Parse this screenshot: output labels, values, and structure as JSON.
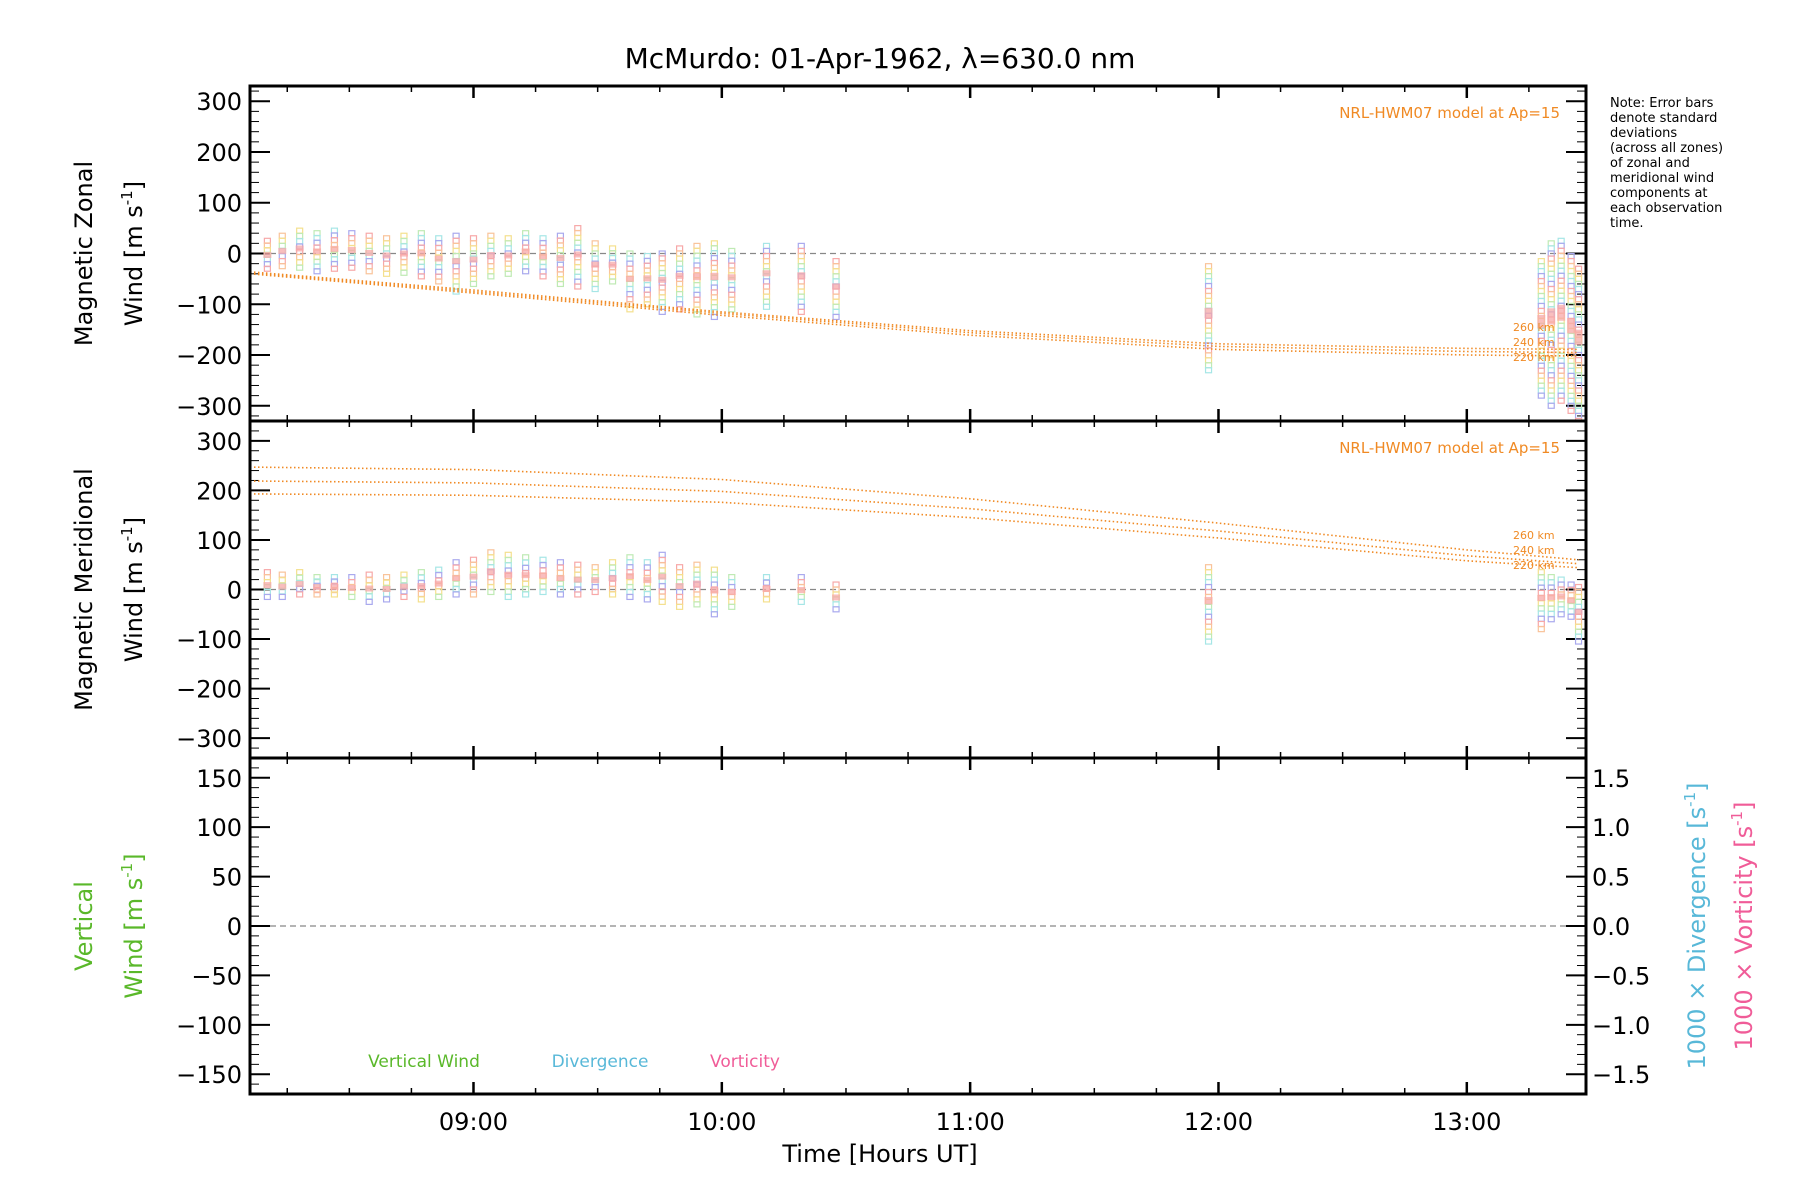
{
  "figure": {
    "title": "McMurdo: 01-Apr-1962, λ=630.0 nm",
    "note_lines": [
      "Note: Error bars",
      "denote standard",
      "deviations",
      "(across all zones)",
      "of zonal and",
      "meridional wind",
      "components at",
      "each observation",
      "time."
    ],
    "colors": {
      "model": "#f08a24",
      "vertical": "#5ab82a",
      "divergence": "#58b8d8",
      "vorticity": "#f05c98",
      "obs_pink": "#f7a8a8",
      "obs_peach": "#f9c39a",
      "obs_yellow": "#f4e08e",
      "obs_green": "#bfeab4",
      "obs_cyan": "#a6e6e6",
      "obs_blue": "#a9a9ee"
    }
  },
  "chart_data": [
    {
      "type": "line",
      "panel": "zonal",
      "ylabel_line1": "Magnetic Zonal",
      "ylabel_line2_prefix": "Wind ",
      "ylabel_units": "[m s",
      "ylabel_units_sup": "-1",
      "ylabel_units_close": "]",
      "ylim": [
        -330,
        330
      ],
      "yticks": [
        300,
        200,
        100,
        0,
        -100,
        -200,
        -300
      ],
      "ytick_labels": [
        "300",
        "200",
        "100",
        "0",
        "−100",
        "−200",
        "−300"
      ],
      "model_label": "NRL-HWM07 model at Ap=15",
      "model_series": [
        {
          "name": "260 km",
          "x": [
            8.1,
            9.0,
            10.0,
            11.0,
            12.0,
            13.0,
            13.45
          ],
          "y": [
            -36,
            -72,
            -115,
            -152,
            -178,
            -187,
            -189
          ]
        },
        {
          "name": "240 km",
          "x": [
            8.1,
            9.0,
            10.0,
            11.0,
            12.0,
            13.0,
            13.45
          ],
          "y": [
            -38,
            -75,
            -118,
            -156,
            -183,
            -193,
            -195
          ]
        },
        {
          "name": "220 km",
          "x": [
            8.1,
            9.0,
            10.0,
            11.0,
            12.0,
            13.0,
            13.45
          ],
          "y": [
            -40,
            -78,
            -122,
            -161,
            -189,
            -200,
            -202
          ]
        }
      ],
      "observations": [
        {
          "x": 8.17,
          "low": -30,
          "high": 25
        },
        {
          "x": 8.23,
          "low": -25,
          "high": 35
        },
        {
          "x": 8.3,
          "low": -28,
          "high": 45
        },
        {
          "x": 8.37,
          "low": -35,
          "high": 40
        },
        {
          "x": 8.44,
          "low": -30,
          "high": 45
        },
        {
          "x": 8.51,
          "low": -28,
          "high": 40
        },
        {
          "x": 8.58,
          "low": -35,
          "high": 35
        },
        {
          "x": 8.65,
          "low": -40,
          "high": 30
        },
        {
          "x": 8.72,
          "low": -38,
          "high": 35
        },
        {
          "x": 8.79,
          "low": -45,
          "high": 40
        },
        {
          "x": 8.86,
          "low": -55,
          "high": 30
        },
        {
          "x": 8.93,
          "low": -75,
          "high": 35
        },
        {
          "x": 9.0,
          "low": -60,
          "high": 30
        },
        {
          "x": 9.07,
          "low": -45,
          "high": 35
        },
        {
          "x": 9.14,
          "low": -40,
          "high": 30
        },
        {
          "x": 9.21,
          "low": -35,
          "high": 40
        },
        {
          "x": 9.28,
          "low": -45,
          "high": 30
        },
        {
          "x": 9.35,
          "low": -60,
          "high": 35
        },
        {
          "x": 9.42,
          "low": -65,
          "high": 50
        },
        {
          "x": 9.49,
          "low": -70,
          "high": 20
        },
        {
          "x": 9.56,
          "low": -55,
          "high": 10
        },
        {
          "x": 9.63,
          "low": -110,
          "high": 0
        },
        {
          "x": 9.7,
          "low": -100,
          "high": -5
        },
        {
          "x": 9.76,
          "low": -115,
          "high": 0
        },
        {
          "x": 9.83,
          "low": -110,
          "high": 10
        },
        {
          "x": 9.9,
          "low": -120,
          "high": 15
        },
        {
          "x": 9.97,
          "low": -125,
          "high": 20
        },
        {
          "x": 10.04,
          "low": -110,
          "high": 5
        },
        {
          "x": 10.18,
          "low": -105,
          "high": 15
        },
        {
          "x": 10.32,
          "low": -115,
          "high": 15
        },
        {
          "x": 10.46,
          "low": -125,
          "high": -15
        },
        {
          "x": 11.96,
          "low": -230,
          "high": -25
        },
        {
          "x": 13.3,
          "low": -280,
          "high": -15
        },
        {
          "x": 13.34,
          "low": -300,
          "high": 20
        },
        {
          "x": 13.38,
          "low": -290,
          "high": 25
        },
        {
          "x": 13.42,
          "low": -310,
          "high": -5
        },
        {
          "x": 13.45,
          "low": -330,
          "high": -30
        }
      ]
    },
    {
      "type": "line",
      "panel": "meridional",
      "ylabel_line1": "Magnetic Meridional",
      "ylabel_line2_prefix": "Wind ",
      "ylabel_units": "[m s",
      "ylabel_units_sup": "-1",
      "ylabel_units_close": "]",
      "ylim": [
        -340,
        340
      ],
      "yticks": [
        300,
        200,
        100,
        0,
        -100,
        -200,
        -300
      ],
      "ytick_labels": [
        "300",
        "200",
        "100",
        "0",
        "−100",
        "−200",
        "−300"
      ],
      "model_label": "NRL-HWM07 model at Ap=15",
      "model_series": [
        {
          "name": "260 km",
          "x": [
            8.1,
            9.0,
            10.0,
            11.0,
            12.0,
            13.0,
            13.45
          ],
          "y": [
            247,
            242,
            222,
            183,
            134,
            80,
            60
          ]
        },
        {
          "name": "240 km",
          "x": [
            8.1,
            9.0,
            10.0,
            11.0,
            12.0,
            13.0,
            13.45
          ],
          "y": [
            219,
            215,
            198,
            163,
            118,
            68,
            52
          ]
        },
        {
          "name": "220 km",
          "x": [
            8.1,
            9.0,
            10.0,
            11.0,
            12.0,
            13.0,
            13.45
          ],
          "y": [
            193,
            190,
            176,
            145,
            104,
            58,
            44
          ]
        }
      ],
      "observations": [
        {
          "x": 8.17,
          "low": -15,
          "high": 35
        },
        {
          "x": 8.23,
          "low": -15,
          "high": 30
        },
        {
          "x": 8.3,
          "low": -10,
          "high": 35
        },
        {
          "x": 8.37,
          "low": -10,
          "high": 25
        },
        {
          "x": 8.44,
          "low": -10,
          "high": 25
        },
        {
          "x": 8.51,
          "low": -15,
          "high": 25
        },
        {
          "x": 8.58,
          "low": -25,
          "high": 30
        },
        {
          "x": 8.65,
          "low": -20,
          "high": 25
        },
        {
          "x": 8.72,
          "low": -15,
          "high": 30
        },
        {
          "x": 8.79,
          "low": -20,
          "high": 35
        },
        {
          "x": 8.86,
          "low": -15,
          "high": 40
        },
        {
          "x": 8.93,
          "low": -10,
          "high": 55
        },
        {
          "x": 9.0,
          "low": -10,
          "high": 60
        },
        {
          "x": 9.07,
          "low": -5,
          "high": 75
        },
        {
          "x": 9.14,
          "low": -15,
          "high": 70
        },
        {
          "x": 9.21,
          "low": -10,
          "high": 65
        },
        {
          "x": 9.28,
          "low": -5,
          "high": 60
        },
        {
          "x": 9.35,
          "low": -10,
          "high": 55
        },
        {
          "x": 9.42,
          "low": -10,
          "high": 50
        },
        {
          "x": 9.49,
          "low": -5,
          "high": 45
        },
        {
          "x": 9.56,
          "low": -10,
          "high": 55
        },
        {
          "x": 9.63,
          "low": -15,
          "high": 65
        },
        {
          "x": 9.7,
          "low": -20,
          "high": 55
        },
        {
          "x": 9.76,
          "low": -25,
          "high": 70
        },
        {
          "x": 9.83,
          "low": -35,
          "high": 45
        },
        {
          "x": 9.9,
          "low": -30,
          "high": 50
        },
        {
          "x": 9.97,
          "low": -50,
          "high": 40
        },
        {
          "x": 10.04,
          "low": -35,
          "high": 25
        },
        {
          "x": 10.18,
          "low": -20,
          "high": 25
        },
        {
          "x": 10.32,
          "low": -25,
          "high": 25
        },
        {
          "x": 10.46,
          "low": -40,
          "high": 10
        },
        {
          "x": 11.96,
          "low": -105,
          "high": 45
        },
        {
          "x": 13.3,
          "low": -80,
          "high": 35
        },
        {
          "x": 13.34,
          "low": -60,
          "high": 25
        },
        {
          "x": 13.38,
          "low": -50,
          "high": 20
        },
        {
          "x": 13.42,
          "low": -55,
          "high": 10
        },
        {
          "x": 13.45,
          "low": -105,
          "high": 5
        }
      ]
    },
    {
      "type": "line",
      "panel": "vertical",
      "ylabel_line1": "Vertical",
      "ylabel_line2_prefix": "Wind ",
      "ylabel_units": "[m s",
      "ylabel_units_sup": "-1",
      "ylabel_units_close": "]",
      "ylim": [
        -170,
        170
      ],
      "yticks": [
        150,
        100,
        50,
        0,
        -50,
        -100,
        -150
      ],
      "ytick_labels": [
        "150",
        "100",
        "50",
        "0",
        "−50",
        "−100",
        "−150"
      ],
      "right_axis": {
        "ylim": [
          -1.5,
          1.5
        ],
        "yticks": [
          1.5,
          1.0,
          0.5,
          0.0,
          -0.5,
          -1.0,
          -1.5
        ],
        "ytick_labels": [
          "1.5",
          "1.0",
          "0.5",
          "0.0",
          "−0.5",
          "−1.0",
          "−1.5"
        ],
        "label_divergence": "1000 × Divergence [s",
        "label_vorticity": "1000 × Vorticity [s",
        "label_sup": "-1",
        "label_close": "]"
      },
      "legend": [
        {
          "name": "Vertical Wind",
          "color_key": "vertical"
        },
        {
          "name": "Divergence",
          "color_key": "divergence"
        },
        {
          "name": "Vorticity",
          "color_key": "vorticity"
        }
      ]
    }
  ],
  "x_axis": {
    "label": "Time [Hours UT]",
    "xlim": [
      8.1,
      13.48
    ],
    "ticks": [
      9,
      10,
      11,
      12,
      13
    ],
    "tick_labels": [
      "09:00",
      "10:00",
      "11:00",
      "12:00",
      "13:00"
    ]
  }
}
